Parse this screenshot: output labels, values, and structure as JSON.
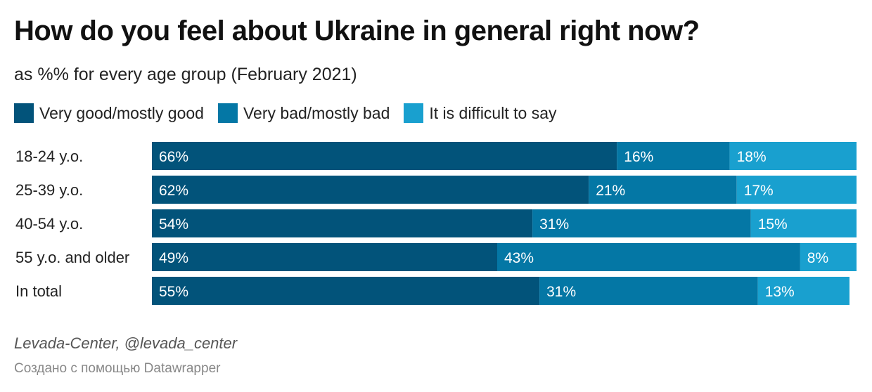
{
  "title": "How do you feel about Ukraine in general right now?",
  "subtitle": "as %% for every age group (February 2021)",
  "legend": [
    {
      "label": "Very good/mostly good",
      "color": "#02537a"
    },
    {
      "label": "Very bad/mostly bad",
      "color": "#0477a5"
    },
    {
      "label": "It is difficult to say",
      "color": "#19a0cf"
    }
  ],
  "chart_data": {
    "type": "bar",
    "orientation": "horizontal-stacked",
    "unit": "%",
    "categories": [
      "18-24 y.o.",
      "25-39 y.o.",
      "40-54 y.o.",
      "55 y.o. and older",
      "In total"
    ],
    "series": [
      {
        "name": "Very good/mostly good",
        "values": [
          66,
          62,
          54,
          49,
          55
        ],
        "labels": [
          "66%",
          "62%",
          "54%",
          "49%",
          "55%"
        ]
      },
      {
        "name": "Very bad/mostly bad",
        "values": [
          16,
          21,
          31,
          43,
          31
        ],
        "labels": [
          "16%",
          "21%",
          "31%",
          "43%",
          "31%"
        ]
      },
      {
        "name": "It is difficult to say",
        "values": [
          18,
          17,
          15,
          8,
          13
        ],
        "labels": [
          "18%",
          "17%",
          "15%",
          "8%",
          "13%"
        ]
      }
    ],
    "xlim": [
      0,
      100
    ]
  },
  "footer": {
    "source": "Levada-Center, @levada_center",
    "credit": "Создано с помощью Datawrapper"
  }
}
